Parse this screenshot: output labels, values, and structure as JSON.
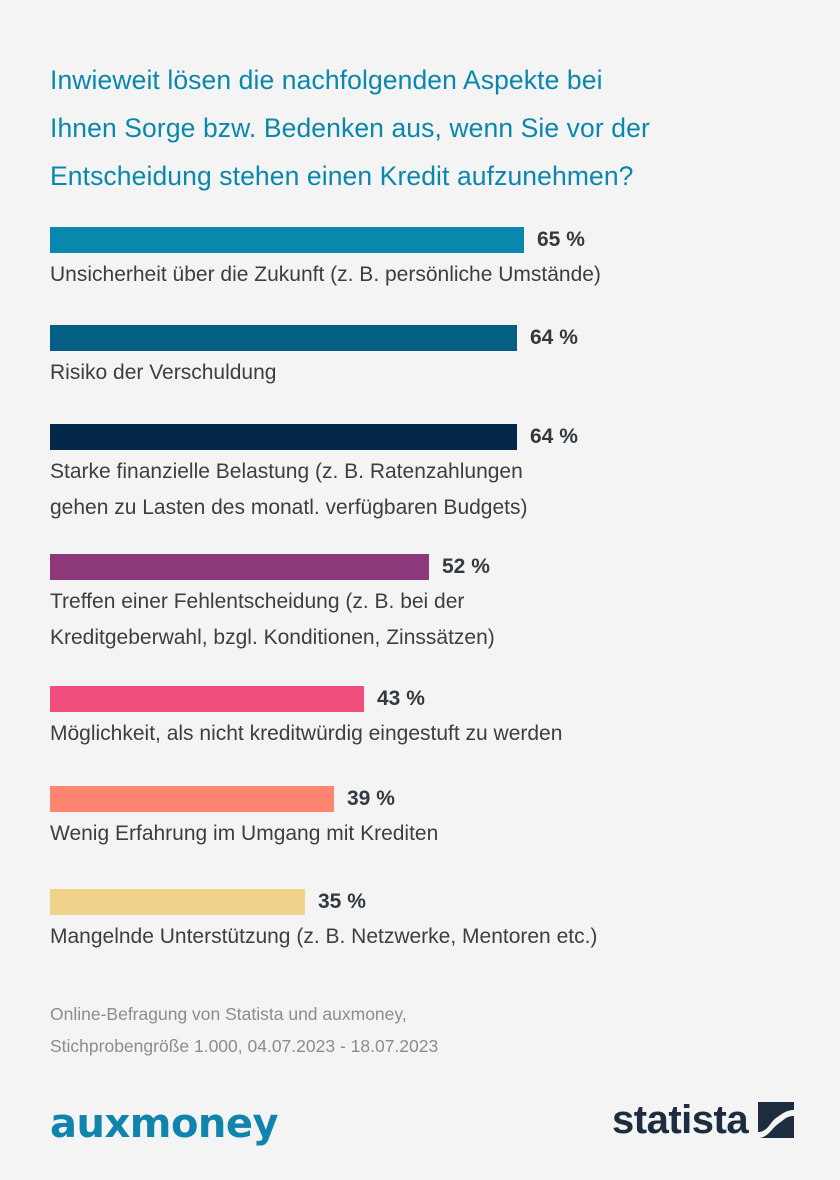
{
  "header": {
    "title_lines": [
      "Inwieweit lösen die nachfolgenden Aspekte bei",
      "Ihnen Sorge bzw. Bedenken aus, wenn Sie vor der",
      "Entscheidung stehen einen Kredit aufzunehmen?"
    ]
  },
  "chart_data": {
    "type": "bar",
    "orientation": "horizontal",
    "title": "Inwieweit lösen die nachfolgenden Aspekte bei Ihnen Sorge bzw. Bedenken aus, wenn Sie vor der Entscheidung stehen einen Kredit aufzunehmen?",
    "unit": "%",
    "xlabel": "",
    "ylabel": "",
    "xlim": [
      0,
      100
    ],
    "grid": false,
    "legend": "none",
    "categories": [
      [
        "Unsicherheit über die Zukunft (z. B. persönliche Umstände)"
      ],
      [
        "Risiko der Verschuldung"
      ],
      [
        "Starke finanzielle Belastung (z. B. Ratenzahlungen",
        "gehen zu Lasten des monatl. verfügbaren Budgets)"
      ],
      [
        "Treffen einer Fehlentscheidung (z. B. bei der",
        "Kreditgeberwahl, bzgl. Konditionen, Zinssätzen)"
      ],
      [
        "Möglichkeit, als nicht kreditwürdig eingestuft zu werden"
      ],
      [
        "Wenig Erfahrung im Umgang mit Krediten"
      ],
      [
        "Mangelnde Unterstützung (z. B. Netzwerke, Mentoren etc.)"
      ]
    ],
    "values": [
      65,
      64,
      64,
      52,
      43,
      39,
      35
    ],
    "value_labels": [
      "65 %",
      "64 %",
      "64 %",
      "52 %",
      "43 %",
      "39 %",
      "35 %"
    ],
    "colors": [
      "#0a87ac",
      "#055f84",
      "#03284a",
      "#8e387c",
      "#f04f7e",
      "#fe8670",
      "#efd38b"
    ]
  },
  "footer": {
    "source_lines": [
      "Online-Befragung von Statista und auxmoney,",
      "Stichprobengröße 1.000, 04.07.2023 - 18.07.2023"
    ],
    "partner_logo": "auxmoney",
    "brand_logo": "statista",
    "partner_color": "#1084ac",
    "brand_color": "#1d2c3e"
  }
}
